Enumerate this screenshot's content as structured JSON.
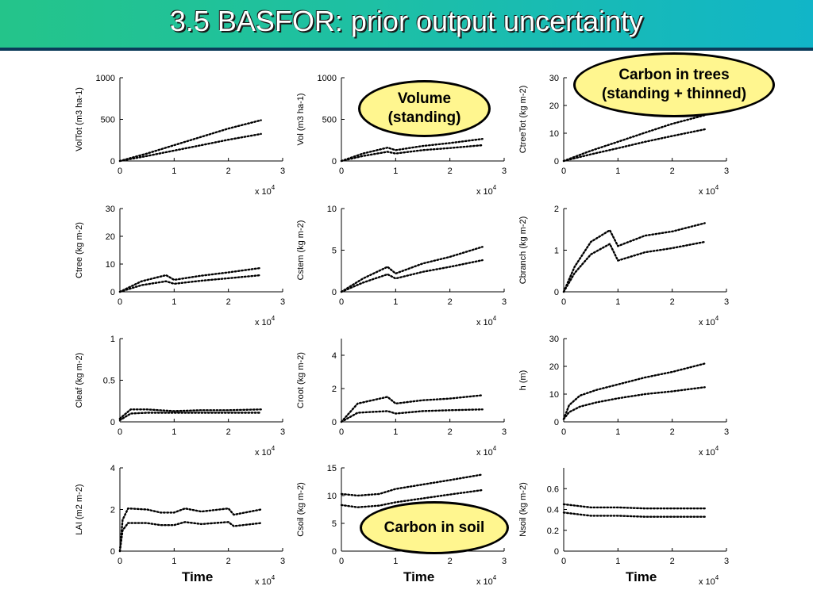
{
  "title": "3.5 BASFOR: prior output uncertainty",
  "callouts": {
    "volume": "Volume (standing)",
    "carbon_trees": "Carbon in trees (standing + thinned)",
    "carbon_soil": "Carbon in soil"
  },
  "time_label": "Time",
  "chart_data": [
    {
      "type": "line",
      "ylabel": "VolTot (m3 ha-1)",
      "xlim": [
        0,
        3
      ],
      "ylim": [
        0,
        1000
      ],
      "xticks": [
        "0",
        "1",
        "2",
        "3"
      ],
      "yticks": [
        0,
        500,
        1000
      ],
      "x_multiplier": "x 10^4",
      "series": [
        {
          "x": [
            0,
            0.5,
            1,
            1.5,
            2,
            2.6
          ],
          "values": [
            0,
            90,
            190,
            290,
            390,
            490
          ]
        },
        {
          "x": [
            0,
            0.5,
            1,
            1.5,
            2,
            2.6
          ],
          "values": [
            0,
            60,
            125,
            190,
            255,
            325
          ]
        }
      ]
    },
    {
      "type": "line",
      "ylabel": "Vol (m3 ha-1)",
      "xlim": [
        0,
        3
      ],
      "ylim": [
        0,
        1000
      ],
      "xticks": [
        "0",
        "1",
        "2",
        "3"
      ],
      "yticks": [
        0,
        500,
        1000
      ],
      "x_multiplier": "x 10^4",
      "series": [
        {
          "x": [
            0,
            0.4,
            0.85,
            1,
            1.5,
            2,
            2.6
          ],
          "values": [
            0,
            90,
            160,
            130,
            180,
            215,
            265
          ]
        },
        {
          "x": [
            0,
            0.4,
            0.85,
            1,
            1.5,
            2,
            2.6
          ],
          "values": [
            0,
            60,
            110,
            90,
            130,
            155,
            190
          ]
        }
      ]
    },
    {
      "type": "line",
      "ylabel": "CtreeTot (kg m-2)",
      "xlim": [
        0,
        3
      ],
      "ylim": [
        0,
        30
      ],
      "xticks": [
        "0",
        "1",
        "2",
        "3"
      ],
      "yticks": [
        0,
        10,
        20,
        30
      ],
      "x_multiplier": "x 10^4",
      "series": [
        {
          "x": [
            0,
            0.5,
            1,
            1.5,
            2,
            2.6
          ],
          "values": [
            0,
            3.7,
            6.9,
            10.2,
            13.4,
            16.5
          ]
        },
        {
          "x": [
            0,
            0.5,
            1,
            1.5,
            2,
            2.6
          ],
          "values": [
            0,
            2.4,
            4.6,
            6.9,
            9.0,
            11.4
          ]
        }
      ]
    },
    {
      "type": "line",
      "ylabel": "Ctree (kg m-2)",
      "xlim": [
        0,
        3
      ],
      "ylim": [
        0,
        30
      ],
      "xticks": [
        "0",
        "1",
        "2",
        "3"
      ],
      "yticks": [
        0,
        10,
        20,
        30
      ],
      "x_multiplier": "x 10^4",
      "series": [
        {
          "x": [
            0,
            0.4,
            0.85,
            1,
            1.5,
            2,
            2.6
          ],
          "values": [
            0,
            3.8,
            6.0,
            4.3,
            5.8,
            7.0,
            8.6
          ]
        },
        {
          "x": [
            0,
            0.4,
            0.85,
            1,
            1.5,
            2,
            2.6
          ],
          "values": [
            0,
            2.4,
            3.8,
            2.9,
            4.0,
            4.9,
            6.0
          ]
        }
      ]
    },
    {
      "type": "line",
      "ylabel": "Cstem (kg m-2)",
      "xlim": [
        0,
        3
      ],
      "ylim": [
        0,
        10
      ],
      "xticks": [
        "0",
        "1",
        "2",
        "3"
      ],
      "yticks": [
        0,
        5,
        10
      ],
      "x_multiplier": "x 10^4",
      "series": [
        {
          "x": [
            0,
            0.4,
            0.85,
            1,
            1.5,
            2,
            2.6
          ],
          "values": [
            0,
            1.6,
            3.0,
            2.2,
            3.4,
            4.2,
            5.4
          ]
        },
        {
          "x": [
            0,
            0.4,
            0.85,
            1,
            1.5,
            2,
            2.6
          ],
          "values": [
            0,
            1.1,
            2.1,
            1.6,
            2.4,
            3.0,
            3.8
          ]
        }
      ]
    },
    {
      "type": "line",
      "ylabel": "Cbranch (kg m-2)",
      "xlim": [
        0,
        3
      ],
      "ylim": [
        0,
        2
      ],
      "xticks": [
        "0",
        "1",
        "2",
        "3"
      ],
      "yticks": [
        0,
        1,
        2
      ],
      "x_multiplier": "x 10^4",
      "series": [
        {
          "x": [
            0,
            0.2,
            0.5,
            0.85,
            1,
            1.5,
            2,
            2.6
          ],
          "values": [
            0,
            0.6,
            1.2,
            1.48,
            1.1,
            1.35,
            1.45,
            1.65
          ]
        },
        {
          "x": [
            0,
            0.2,
            0.5,
            0.85,
            1,
            1.5,
            2,
            2.6
          ],
          "values": [
            0,
            0.45,
            0.9,
            1.15,
            0.75,
            0.95,
            1.05,
            1.2
          ]
        }
      ]
    },
    {
      "type": "line",
      "ylabel": "Cleaf (kg m-2)",
      "xlim": [
        0,
        3
      ],
      "ylim": [
        0,
        1
      ],
      "xticks": [
        "0",
        "1",
        "2",
        "3"
      ],
      "yticks": [
        0,
        0.5,
        1
      ],
      "x_multiplier": "x 10^4",
      "series": [
        {
          "x": [
            0,
            0.2,
            0.5,
            1,
            1.5,
            2,
            2.6
          ],
          "values": [
            0.04,
            0.15,
            0.15,
            0.13,
            0.14,
            0.14,
            0.15
          ]
        },
        {
          "x": [
            0,
            0.2,
            0.5,
            1,
            1.5,
            2,
            2.6
          ],
          "values": [
            0.02,
            0.1,
            0.11,
            0.11,
            0.11,
            0.11,
            0.11
          ]
        }
      ]
    },
    {
      "type": "line",
      "ylabel": "Croot (kg m-2)",
      "xlim": [
        0,
        3
      ],
      "ylim": [
        0,
        5
      ],
      "xticks": [
        "0",
        "1",
        "2",
        "3"
      ],
      "yticks": [
        0,
        2,
        4
      ],
      "x_multiplier": "x 10^4",
      "series": [
        {
          "x": [
            0,
            0.3,
            0.85,
            1,
            1.5,
            2,
            2.6
          ],
          "values": [
            0,
            1.1,
            1.5,
            1.1,
            1.3,
            1.4,
            1.6
          ]
        },
        {
          "x": [
            0,
            0.3,
            0.85,
            1,
            1.5,
            2,
            2.6
          ],
          "values": [
            0,
            0.55,
            0.65,
            0.5,
            0.65,
            0.7,
            0.75
          ]
        }
      ]
    },
    {
      "type": "line",
      "ylabel": "h (m)",
      "xlim": [
        0,
        3
      ],
      "ylim": [
        0,
        30
      ],
      "xticks": [
        "0",
        "1",
        "2",
        "3"
      ],
      "yticks": [
        0,
        10,
        20,
        30
      ],
      "x_multiplier": "x 10^4",
      "series": [
        {
          "x": [
            0,
            0.1,
            0.3,
            0.6,
            1,
            1.5,
            2,
            2.6
          ],
          "values": [
            1,
            6,
            9.5,
            11.5,
            13.5,
            16,
            18,
            21
          ]
        },
        {
          "x": [
            0,
            0.1,
            0.3,
            0.6,
            1,
            1.5,
            2,
            2.6
          ],
          "values": [
            1,
            3.5,
            5.5,
            7,
            8.5,
            10,
            11,
            12.5
          ]
        }
      ]
    },
    {
      "type": "line",
      "ylabel": "LAI (m2 m-2)",
      "xlim": [
        0,
        3
      ],
      "ylim": [
        0,
        4
      ],
      "xticks": [
        "0",
        "1",
        "2",
        "3"
      ],
      "yticks": [
        0,
        2,
        4
      ],
      "x_multiplier": "x 10^4",
      "series": [
        {
          "x": [
            0,
            0.05,
            0.15,
            0.5,
            0.75,
            1,
            1.2,
            1.5,
            2,
            2.1,
            2.6
          ],
          "values": [
            0,
            1.5,
            2.05,
            2.0,
            1.85,
            1.85,
            2.05,
            1.9,
            2.05,
            1.75,
            2.0
          ]
        },
        {
          "x": [
            0,
            0.05,
            0.15,
            0.5,
            0.75,
            1,
            1.2,
            1.5,
            2,
            2.1,
            2.6
          ],
          "values": [
            0,
            1.0,
            1.35,
            1.35,
            1.25,
            1.25,
            1.4,
            1.3,
            1.4,
            1.2,
            1.35
          ]
        }
      ]
    },
    {
      "type": "line",
      "ylabel": "Csoil (kg m-2)",
      "xlim": [
        0,
        3
      ],
      "ylim": [
        0,
        15
      ],
      "xticks": [
        "0",
        "1",
        "2",
        "3"
      ],
      "yticks": [
        0,
        5,
        10,
        15
      ],
      "x_multiplier": "x 10^4",
      "series": [
        {
          "x": [
            0,
            0.3,
            0.7,
            1,
            1.5,
            2,
            2.6
          ],
          "values": [
            10.3,
            10.0,
            10.3,
            11.2,
            12.0,
            12.8,
            13.8
          ]
        },
        {
          "x": [
            0,
            0.3,
            0.7,
            1,
            1.5,
            2,
            2.6
          ],
          "values": [
            8.3,
            7.9,
            8.2,
            8.8,
            9.5,
            10.2,
            11.0
          ]
        }
      ]
    },
    {
      "type": "line",
      "ylabel": "Nsoil (kg m-2)",
      "xlim": [
        0,
        3
      ],
      "ylim": [
        0,
        0.8
      ],
      "xticks": [
        "0",
        "1",
        "2",
        "3"
      ],
      "yticks": [
        0,
        0.2,
        0.4,
        0.6
      ],
      "x_multiplier": "x 10^4",
      "series": [
        {
          "x": [
            0,
            0.5,
            1,
            1.5,
            2,
            2.6
          ],
          "values": [
            0.45,
            0.42,
            0.42,
            0.41,
            0.41,
            0.41
          ]
        },
        {
          "x": [
            0,
            0.5,
            1,
            1.5,
            2,
            2.6
          ],
          "values": [
            0.37,
            0.34,
            0.34,
            0.33,
            0.33,
            0.33
          ]
        }
      ]
    }
  ]
}
